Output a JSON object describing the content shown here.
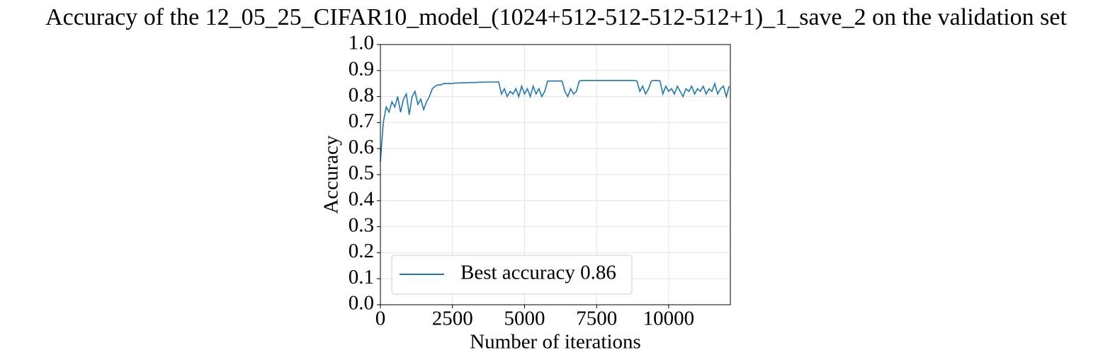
{
  "chart_data": {
    "type": "line",
    "title": "Accuracy of the 12_05_25_CIFAR10_model_(1024+512-512-512-512+1)_1_save_2 on the validation set",
    "x_label": "Number of iterations",
    "y_label": "Accuracy",
    "x": [
      0,
      100,
      200,
      300,
      400,
      500,
      600,
      700,
      800,
      900,
      1000,
      1100,
      1200,
      1300,
      1400,
      1500,
      1600,
      1700,
      1800,
      1900,
      2000,
      2100,
      2200,
      2300,
      2400,
      2500,
      2600,
      2700,
      2800,
      2900,
      3000,
      3100,
      3200,
      3300,
      3400,
      3500,
      3600,
      3700,
      3800,
      3900,
      4000,
      4100,
      4200,
      4300,
      4400,
      4500,
      4600,
      4700,
      4800,
      4900,
      5000,
      5100,
      5200,
      5300,
      5400,
      5500,
      5600,
      5700,
      5800,
      5900,
      6000,
      6100,
      6200,
      6300,
      6400,
      6500,
      6600,
      6700,
      6800,
      6900,
      7000,
      7100,
      7200,
      7300,
      7400,
      7500,
      7600,
      7700,
      7800,
      7900,
      8000,
      8100,
      8200,
      8300,
      8400,
      8500,
      8600,
      8700,
      8800,
      8900,
      9000,
      9100,
      9200,
      9300,
      9400,
      9500,
      9600,
      9700,
      9800,
      9900,
      10000,
      10100,
      10200,
      10300,
      10400,
      10500,
      10600,
      10700,
      10800,
      10900,
      11000,
      11100,
      11200,
      11300,
      11400,
      11500,
      11600,
      11700,
      11800,
      11900,
      12000,
      12100
    ],
    "series": [
      {
        "name": "Best accuracy 0.86",
        "color": "#1f77b4",
        "values": [
          0.55,
          0.7,
          0.76,
          0.74,
          0.78,
          0.76,
          0.8,
          0.74,
          0.79,
          0.81,
          0.73,
          0.8,
          0.82,
          0.77,
          0.79,
          0.75,
          0.78,
          0.8,
          0.83,
          0.84,
          0.845,
          0.845,
          0.85,
          0.85,
          0.85,
          0.85,
          0.852,
          0.852,
          0.853,
          0.853,
          0.853,
          0.854,
          0.854,
          0.854,
          0.855,
          0.855,
          0.855,
          0.856,
          0.856,
          0.856,
          0.856,
          0.857,
          0.81,
          0.83,
          0.8,
          0.82,
          0.81,
          0.83,
          0.8,
          0.84,
          0.81,
          0.83,
          0.8,
          0.84,
          0.81,
          0.83,
          0.8,
          0.82,
          0.86,
          0.86,
          0.86,
          0.86,
          0.86,
          0.86,
          0.82,
          0.8,
          0.83,
          0.81,
          0.82,
          0.86,
          0.862,
          0.862,
          0.862,
          0.862,
          0.862,
          0.862,
          0.862,
          0.862,
          0.862,
          0.862,
          0.862,
          0.862,
          0.862,
          0.862,
          0.862,
          0.862,
          0.862,
          0.862,
          0.862,
          0.86,
          0.82,
          0.84,
          0.81,
          0.83,
          0.86,
          0.862,
          0.862,
          0.86,
          0.81,
          0.84,
          0.82,
          0.83,
          0.81,
          0.84,
          0.82,
          0.8,
          0.83,
          0.82,
          0.84,
          0.81,
          0.83,
          0.82,
          0.84,
          0.81,
          0.83,
          0.82,
          0.85,
          0.81,
          0.83,
          0.84,
          0.8,
          0.84
        ]
      }
    ],
    "xlim": [
      0,
      12140
    ],
    "ylim": [
      0,
      1
    ],
    "xticks": [
      0,
      2500,
      5000,
      7500,
      10000
    ],
    "yticks": [
      {
        "value": 0,
        "label": "0.0"
      },
      0.1,
      0.2,
      0.3,
      0.4,
      0.5,
      0.6,
      0.7,
      0.8,
      0.9,
      {
        "value": 1,
        "label": "1.0"
      }
    ],
    "grid": true,
    "legend": "lower left"
  }
}
